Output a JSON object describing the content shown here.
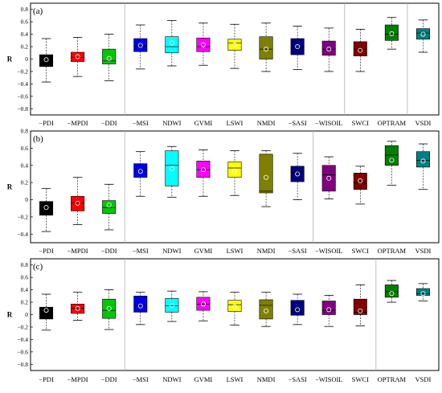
{
  "chart_data": [
    {
      "type": "box",
      "panel_label": "(a)",
      "ylabel": "R",
      "ylim": [
        -0.9,
        0.9
      ],
      "yticks": [
        -0.8,
        -0.6,
        -0.4,
        -0.2,
        0,
        0.2,
        0.4,
        0.6,
        0.8
      ],
      "ytick_labels": [
        "−0.8",
        "−0.6",
        "−0.4",
        "−0.2",
        "0",
        "0.2",
        "0.4",
        "0.6",
        "0.8"
      ],
      "group_dividers_after": [
        3,
        10,
        12
      ],
      "categories": [
        "−PDI",
        "−MPDI",
        "−DDI",
        "−MSI",
        "NDWI",
        "GVMI",
        "LSWI",
        "NMDI",
        "−SASI",
        "−WISOIL",
        "SWCI",
        "OPTRAM",
        "VSDI"
      ],
      "colors": [
        "#000000",
        "#ff0000",
        "#00c800",
        "#0000e6",
        "#00ffff",
        "#ff00ff",
        "#ffff00",
        "#808000",
        "#000080",
        "#800080",
        "#800000",
        "#008000",
        "#008080"
      ],
      "boxes": [
        {
          "min": -0.37,
          "q1": -0.12,
          "median": -0.02,
          "q3": 0.07,
          "max": 0.33,
          "mean": -0.01
        },
        {
          "min": -0.28,
          "q1": -0.04,
          "median": 0.03,
          "q3": 0.11,
          "max": 0.35,
          "mean": 0.04
        },
        {
          "min": -0.35,
          "q1": -0.08,
          "median": -0.03,
          "q3": 0.16,
          "max": 0.4,
          "mean": 0.01
        },
        {
          "min": -0.16,
          "q1": 0.12,
          "median": 0.21,
          "q3": 0.33,
          "max": 0.55,
          "mean": 0.22
        },
        {
          "min": -0.11,
          "q1": 0.1,
          "median": 0.2,
          "q3": 0.36,
          "max": 0.62,
          "mean": 0.26
        },
        {
          "min": -0.1,
          "q1": 0.12,
          "median": 0.2,
          "q3": 0.34,
          "max": 0.58,
          "mean": 0.23
        },
        {
          "min": -0.15,
          "q1": 0.14,
          "median": 0.26,
          "q3": 0.32,
          "max": 0.56,
          "mean": 0.23
        },
        {
          "min": -0.2,
          "q1": 0.0,
          "median": 0.16,
          "q3": 0.36,
          "max": 0.58,
          "mean": 0.16
        },
        {
          "min": -0.17,
          "q1": 0.07,
          "median": 0.18,
          "q3": 0.33,
          "max": 0.53,
          "mean": 0.2
        },
        {
          "min": -0.2,
          "q1": 0.06,
          "median": 0.16,
          "q3": 0.29,
          "max": 0.5,
          "mean": 0.16
        },
        {
          "min": -0.2,
          "q1": 0.05,
          "median": 0.16,
          "q3": 0.28,
          "max": 0.48,
          "mean": 0.14
        },
        {
          "min": 0.16,
          "q1": 0.3,
          "median": 0.4,
          "q3": 0.55,
          "max": 0.67,
          "mean": 0.41
        },
        {
          "min": 0.11,
          "q1": 0.32,
          "median": 0.42,
          "q3": 0.49,
          "max": 0.63,
          "mean": 0.4
        }
      ]
    },
    {
      "type": "box",
      "panel_label": "(b)",
      "ylabel": "R",
      "ylim": [
        -0.5,
        0.8
      ],
      "yticks": [
        -0.4,
        -0.2,
        0,
        0.2,
        0.4,
        0.6,
        0.8
      ],
      "ytick_labels": [
        "−0.4",
        "−0.2",
        "0",
        "0.2",
        "0.4",
        "0.6",
        "0.8"
      ],
      "group_dividers_after": [
        3,
        9
      ],
      "categories": [
        "−PDI",
        "−MPDI",
        "−DDI",
        "−MSI",
        "NDWI",
        "GVMI",
        "LSWI",
        "NMDI",
        "−SASI",
        "−WISOIL",
        "SWCI",
        "OPTRAM",
        "VSDI"
      ],
      "colors": [
        "#000000",
        "#ff0000",
        "#00c800",
        "#0000e6",
        "#00ffff",
        "#ff00ff",
        "#ffff00",
        "#808000",
        "#000080",
        "#800080",
        "#800000",
        "#008000",
        "#008080"
      ],
      "boxes": [
        {
          "min": -0.37,
          "q1": -0.18,
          "median": -0.08,
          "q3": -0.02,
          "max": 0.13,
          "mean": -0.09
        },
        {
          "min": -0.29,
          "q1": -0.13,
          "median": -0.04,
          "q3": 0.04,
          "max": 0.26,
          "mean": -0.04
        },
        {
          "min": -0.35,
          "q1": -0.16,
          "median": -0.09,
          "q3": -0.01,
          "max": 0.18,
          "mean": -0.06
        },
        {
          "min": 0.04,
          "q1": 0.26,
          "median": 0.35,
          "q3": 0.42,
          "max": 0.56,
          "mean": 0.33
        },
        {
          "min": 0.03,
          "q1": 0.16,
          "median": 0.4,
          "q3": 0.57,
          "max": 0.62,
          "mean": 0.36
        },
        {
          "min": 0.04,
          "q1": 0.26,
          "median": 0.35,
          "q3": 0.45,
          "max": 0.58,
          "mean": 0.35
        },
        {
          "min": 0.05,
          "q1": 0.26,
          "median": 0.37,
          "q3": 0.44,
          "max": 0.57,
          "mean": 0.33
        },
        {
          "min": -0.08,
          "q1": 0.08,
          "median": 0.1,
          "q3": 0.53,
          "max": 0.57,
          "mean": 0.26
        },
        {
          "min": 0.0,
          "q1": 0.21,
          "median": 0.32,
          "q3": 0.39,
          "max": 0.54,
          "mean": 0.3
        },
        {
          "min": 0.01,
          "q1": 0.1,
          "median": 0.29,
          "q3": 0.4,
          "max": 0.5,
          "mean": 0.25
        },
        {
          "min": -0.05,
          "q1": 0.12,
          "median": 0.2,
          "q3": 0.31,
          "max": 0.39,
          "mean": 0.22
        },
        {
          "min": 0.17,
          "q1": 0.4,
          "median": 0.52,
          "q3": 0.63,
          "max": 0.68,
          "mean": 0.46
        },
        {
          "min": 0.12,
          "q1": 0.38,
          "median": 0.46,
          "q3": 0.56,
          "max": 0.65,
          "mean": 0.45
        }
      ]
    },
    {
      "type": "box",
      "panel_label": "(c)",
      "ylabel": "R",
      "ylim": [
        -0.9,
        0.9
      ],
      "yticks": [
        -0.8,
        -0.6,
        -0.4,
        -0.2,
        0,
        0.2,
        0.4,
        0.6,
        0.8
      ],
      "ytick_labels": [
        "−0.8",
        "−0.6",
        "−0.4",
        "−0.2",
        "0",
        "0.2",
        "0.4",
        "0.6",
        "0.8"
      ],
      "group_dividers_after": [
        3,
        11
      ],
      "categories": [
        "−PDI",
        "−MPDI",
        "−DDI",
        "−MSI",
        "NDWI",
        "GVMI",
        "LSWI",
        "NMDI",
        "−SASI",
        "−WISOIL",
        "SWCI",
        "OPTRAM",
        "VSDI"
      ],
      "colors": [
        "#000000",
        "#ff0000",
        "#00c800",
        "#0000e6",
        "#00ffff",
        "#ff00ff",
        "#ffff00",
        "#808000",
        "#000080",
        "#800080",
        "#800000",
        "#008000",
        "#008080"
      ],
      "boxes": [
        {
          "min": -0.25,
          "q1": -0.07,
          "median": 0.07,
          "q3": 0.12,
          "max": 0.33,
          "mean": 0.07
        },
        {
          "min": -0.09,
          "q1": 0.02,
          "median": 0.1,
          "q3": 0.17,
          "max": 0.36,
          "mean": 0.1
        },
        {
          "min": -0.24,
          "q1": -0.06,
          "median": 0.07,
          "q3": 0.25,
          "max": 0.4,
          "mean": 0.1
        },
        {
          "min": -0.16,
          "q1": 0.04,
          "median": 0.15,
          "q3": 0.3,
          "max": 0.36,
          "mean": 0.14
        },
        {
          "min": -0.11,
          "q1": 0.04,
          "median": 0.14,
          "q3": 0.26,
          "max": 0.38,
          "mean": 0.15
        },
        {
          "min": -0.1,
          "q1": 0.07,
          "median": 0.17,
          "q3": 0.28,
          "max": 0.37,
          "mean": 0.17
        },
        {
          "min": -0.17,
          "q1": 0.05,
          "median": 0.16,
          "q3": 0.23,
          "max": 0.36,
          "mean": 0.13
        },
        {
          "min": -0.19,
          "q1": -0.07,
          "median": 0.15,
          "q3": 0.24,
          "max": 0.36,
          "mean": 0.06
        },
        {
          "min": -0.16,
          "q1": -0.01,
          "median": 0.07,
          "q3": 0.23,
          "max": 0.33,
          "mean": 0.08
        },
        {
          "min": -0.19,
          "q1": 0.0,
          "median": 0.07,
          "q3": 0.22,
          "max": 0.31,
          "mean": 0.08
        },
        {
          "min": -0.18,
          "q1": 0.0,
          "median": 0.04,
          "q3": 0.25,
          "max": 0.48,
          "mean": 0.06
        },
        {
          "min": 0.2,
          "q1": 0.28,
          "median": 0.37,
          "q3": 0.48,
          "max": 0.55,
          "mean": 0.34
        },
        {
          "min": 0.22,
          "q1": 0.31,
          "median": 0.34,
          "q3": 0.42,
          "max": 0.5,
          "mean": 0.34
        }
      ]
    }
  ]
}
